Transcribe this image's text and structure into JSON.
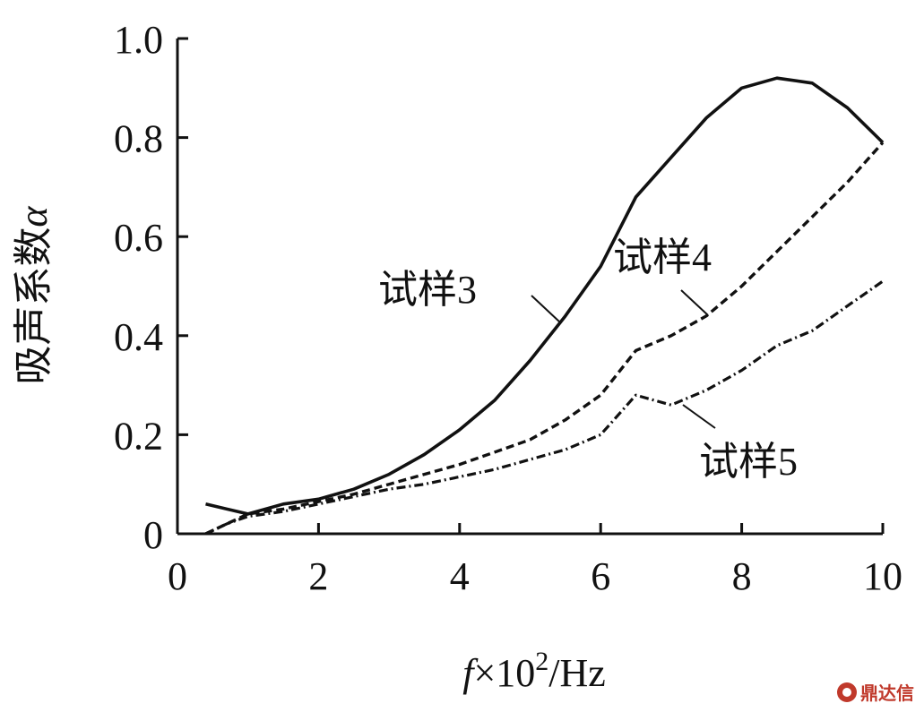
{
  "chart_data": {
    "type": "line",
    "xlabel_parts": {
      "f": "f",
      "times": "×10",
      "sup": "2",
      "unit": "/Hz"
    },
    "ylabel_parts": {
      "text": "吸声系数",
      "symbol": "α"
    },
    "xlim": [
      0,
      10
    ],
    "ylim": [
      0,
      1.0
    ],
    "xticks": [
      {
        "value": 0,
        "label": "0"
      },
      {
        "value": 2,
        "label": "2"
      },
      {
        "value": 4,
        "label": "4"
      },
      {
        "value": 6,
        "label": "6"
      },
      {
        "value": 8,
        "label": "8"
      },
      {
        "value": 10,
        "label": "10"
      }
    ],
    "yticks": [
      {
        "value": 0,
        "label": "0"
      },
      {
        "value": 0.2,
        "label": "0.2"
      },
      {
        "value": 0.4,
        "label": "0.4"
      },
      {
        "value": 0.6,
        "label": "0.6"
      },
      {
        "value": 0.8,
        "label": "0.8"
      },
      {
        "value": 1.0,
        "label": "1.0"
      }
    ],
    "series": [
      {
        "name": "试样3",
        "style": "solid",
        "color": "#111111",
        "x": [
          0.4,
          1.0,
          1.5,
          2.0,
          2.5,
          3.0,
          3.5,
          4.0,
          4.5,
          5.0,
          5.5,
          6.0,
          6.5,
          7.0,
          7.5,
          8.0,
          8.5,
          9.0,
          9.5,
          10.0
        ],
        "y": [
          0.06,
          0.04,
          0.06,
          0.07,
          0.09,
          0.12,
          0.16,
          0.21,
          0.27,
          0.35,
          0.44,
          0.54,
          0.68,
          0.76,
          0.84,
          0.9,
          0.92,
          0.91,
          0.86,
          0.79
        ]
      },
      {
        "name": "试样4",
        "style": "dashed",
        "color": "#111111",
        "x": [
          0.4,
          0.7,
          1.0,
          1.5,
          2.0,
          2.5,
          3.0,
          3.5,
          4.0,
          4.5,
          5.0,
          5.5,
          6.0,
          6.5,
          7.0,
          7.5,
          8.0,
          8.5,
          9.0,
          9.5,
          10.0
        ],
        "y": [
          0.0,
          0.02,
          0.04,
          0.05,
          0.065,
          0.08,
          0.1,
          0.12,
          0.14,
          0.165,
          0.19,
          0.23,
          0.28,
          0.37,
          0.4,
          0.44,
          0.5,
          0.57,
          0.64,
          0.71,
          0.79
        ]
      },
      {
        "name": "试样5",
        "style": "dashdot",
        "color": "#111111",
        "x": [
          0.4,
          0.7,
          1.0,
          1.5,
          2.0,
          2.5,
          3.0,
          3.5,
          4.0,
          4.5,
          5.0,
          5.5,
          6.0,
          6.5,
          7.0,
          7.5,
          8.0,
          8.5,
          9.0,
          9.5,
          10.0
        ],
        "y": [
          0.0,
          0.02,
          0.035,
          0.045,
          0.06,
          0.075,
          0.09,
          0.1,
          0.115,
          0.13,
          0.15,
          0.17,
          0.2,
          0.28,
          0.26,
          0.29,
          0.33,
          0.38,
          0.41,
          0.46,
          0.51
        ]
      }
    ],
    "annotations": [
      {
        "series": 0,
        "text_parts": {
          "cn": "试样",
          "num": "3"
        }
      },
      {
        "series": 1,
        "text_parts": {
          "cn": "试样",
          "num": "4"
        }
      },
      {
        "series": 2,
        "text_parts": {
          "cn": "试样",
          "num": "5"
        }
      }
    ]
  },
  "watermark": {
    "text": "鼎达信",
    "icon": "logo-mark"
  }
}
